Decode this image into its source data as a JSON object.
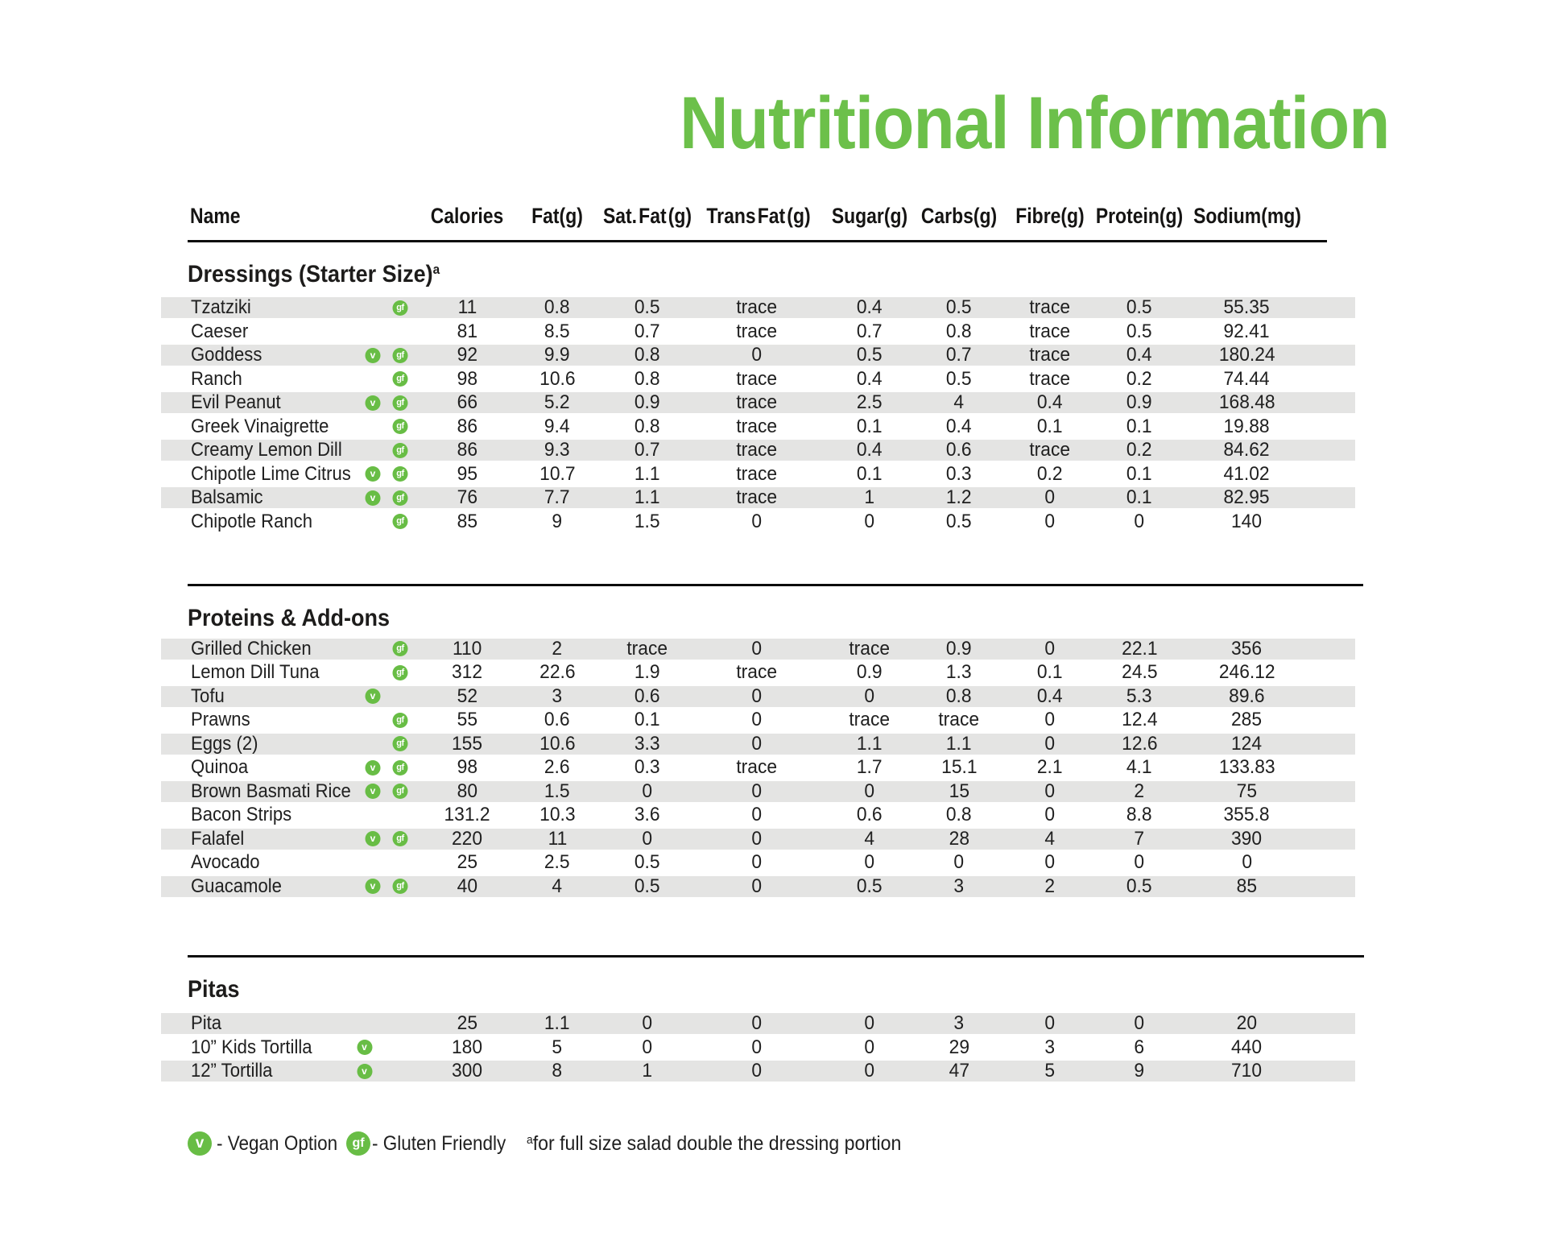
{
  "title": "Nutritional Information",
  "columns": {
    "name": "Name",
    "calories": "Calories",
    "fat": "Fat(g)",
    "sat_fat": "Sat. Fat (g)",
    "trans_fat": "Trans Fat (g)",
    "sugar": "Sugar(g)",
    "carbs": "Carbs(g)",
    "fibre": "Fibre(g)",
    "protein": "Protein(g)",
    "sodium": "Sodium(mg)"
  },
  "badges": {
    "vegan": "v",
    "gluten_friendly": "gf"
  },
  "sections": [
    {
      "heading": "Dressings (Starter Size)",
      "heading_sup": "a",
      "rows": [
        {
          "name": "Tzatziki",
          "vegan": false,
          "gf": true,
          "values": [
            "11",
            "0.8",
            "0.5",
            "trace",
            "0.4",
            "0.5",
            "trace",
            "0.5",
            "55.35"
          ]
        },
        {
          "name": "Caeser",
          "vegan": false,
          "gf": false,
          "values": [
            "81",
            "8.5",
            "0.7",
            "trace",
            "0.7",
            "0.8",
            "trace",
            "0.5",
            "92.41"
          ]
        },
        {
          "name": "Goddess",
          "vegan": true,
          "gf": true,
          "values": [
            "92",
            "9.9",
            "0.8",
            "0",
            "0.5",
            "0.7",
            "trace",
            "0.4",
            "180.24"
          ]
        },
        {
          "name": "Ranch",
          "vegan": false,
          "gf": true,
          "values": [
            "98",
            "10.6",
            "0.8",
            "trace",
            "0.4",
            "0.5",
            "trace",
            "0.2",
            "74.44"
          ]
        },
        {
          "name": "Evil Peanut",
          "vegan": true,
          "gf": true,
          "values": [
            "66",
            "5.2",
            "0.9",
            "trace",
            "2.5",
            "4",
            "0.4",
            "0.9",
            "168.48"
          ]
        },
        {
          "name": "Greek Vinaigrette",
          "vegan": false,
          "gf": true,
          "values": [
            "86",
            "9.4",
            "0.8",
            "trace",
            "0.1",
            "0.4",
            "0.1",
            "0.1",
            "19.88"
          ]
        },
        {
          "name": "Creamy Lemon Dill",
          "vegan": false,
          "gf": true,
          "values": [
            "86",
            "9.3",
            "0.7",
            "trace",
            "0.4",
            "0.6",
            "trace",
            "0.2",
            "84.62"
          ]
        },
        {
          "name": "Chipotle Lime Citrus",
          "vegan": true,
          "gf": true,
          "values": [
            "95",
            "10.7",
            "1.1",
            "trace",
            "0.1",
            "0.3",
            "0.2",
            "0.1",
            "41.02"
          ]
        },
        {
          "name": "Balsamic",
          "vegan": true,
          "gf": true,
          "values": [
            "76",
            "7.7",
            "1.1",
            "trace",
            "1",
            "1.2",
            "0",
            "0.1",
            "82.95"
          ]
        },
        {
          "name": "Chipotle Ranch",
          "vegan": false,
          "gf": true,
          "values": [
            "85",
            "9",
            "1.5",
            "0",
            "0",
            "0.5",
            "0",
            "0",
            "140"
          ]
        }
      ]
    },
    {
      "heading": "Proteins & Add-ons",
      "heading_sup": "",
      "rows": [
        {
          "name": "Grilled Chicken",
          "vegan": false,
          "gf": true,
          "values": [
            "110",
            "2",
            "trace",
            "0",
            "trace",
            "0.9",
            "0",
            "22.1",
            "356"
          ]
        },
        {
          "name": "Lemon Dill Tuna",
          "vegan": false,
          "gf": true,
          "values": [
            "312",
            "22.6",
            "1.9",
            "trace",
            "0.9",
            "1.3",
            "0.1",
            "24.5",
            "246.12"
          ]
        },
        {
          "name": "Tofu",
          "vegan": true,
          "gf": false,
          "values": [
            "52",
            "3",
            "0.6",
            "0",
            "0",
            "0.8",
            "0.4",
            "5.3",
            "89.6"
          ]
        },
        {
          "name": "Prawns",
          "vegan": false,
          "gf": true,
          "values": [
            "55",
            "0.6",
            "0.1",
            "0",
            "trace",
            "trace",
            "0",
            "12.4",
            "285"
          ]
        },
        {
          "name": "Eggs (2)",
          "vegan": false,
          "gf": true,
          "values": [
            "155",
            "10.6",
            "3.3",
            "0",
            "1.1",
            "1.1",
            "0",
            "12.6",
            "124"
          ]
        },
        {
          "name": "Quinoa",
          "vegan": true,
          "gf": true,
          "values": [
            "98",
            "2.6",
            "0.3",
            "trace",
            "1.7",
            "15.1",
            "2.1",
            "4.1",
            "133.83"
          ]
        },
        {
          "name": "Brown Basmati Rice",
          "vegan": true,
          "gf": true,
          "values": [
            "80",
            "1.5",
            "0",
            "0",
            "0",
            "15",
            "0",
            "2",
            "75"
          ]
        },
        {
          "name": "Bacon Strips",
          "vegan": false,
          "gf": false,
          "values": [
            "131.2",
            "10.3",
            "3.6",
            "0",
            "0.6",
            "0.8",
            "0",
            "8.8",
            "355.8"
          ]
        },
        {
          "name": "Falafel",
          "vegan": true,
          "gf": true,
          "values": [
            "220",
            "11",
            "0",
            "0",
            "4",
            "28",
            "4",
            "7",
            "390"
          ]
        },
        {
          "name": "Avocado",
          "vegan": false,
          "gf": false,
          "values": [
            "25",
            "2.5",
            "0.5",
            "0",
            "0",
            "0",
            "0",
            "0",
            "0"
          ]
        },
        {
          "name": "Guacamole",
          "vegan": true,
          "gf": true,
          "values": [
            "40",
            "4",
            "0.5",
            "0",
            "0.5",
            "3",
            "2",
            "0.5",
            "85"
          ]
        }
      ]
    },
    {
      "heading": "Pitas",
      "heading_sup": "",
      "rows": [
        {
          "name": "Pita",
          "vegan": false,
          "gf": false,
          "values": [
            "25",
            "1.1",
            "0",
            "0",
            "0",
            "3",
            "0",
            "0",
            "20"
          ]
        },
        {
          "name": "10” Kids Tortilla",
          "vegan": true,
          "gf": false,
          "values": [
            "180",
            "5",
            "0",
            "0",
            "0",
            "29",
            "3",
            "6",
            "440"
          ]
        },
        {
          "name": "12” Tortilla",
          "vegan": true,
          "gf": false,
          "values": [
            "300",
            "8",
            "1",
            "0",
            "0",
            "47",
            "5",
            "9",
            "710"
          ]
        }
      ]
    }
  ],
  "legend": {
    "vegan_label": "- Vegan Option",
    "gluten_label": "- Gluten Friendly",
    "note_sup": "a",
    "note": "for full size salad double the dressing portion"
  },
  "colors": {
    "accent_green": "#6cc04a",
    "badge_green": "#68bd45",
    "stripe_gray": "#e4e4e3",
    "text_dark": "#202020"
  }
}
